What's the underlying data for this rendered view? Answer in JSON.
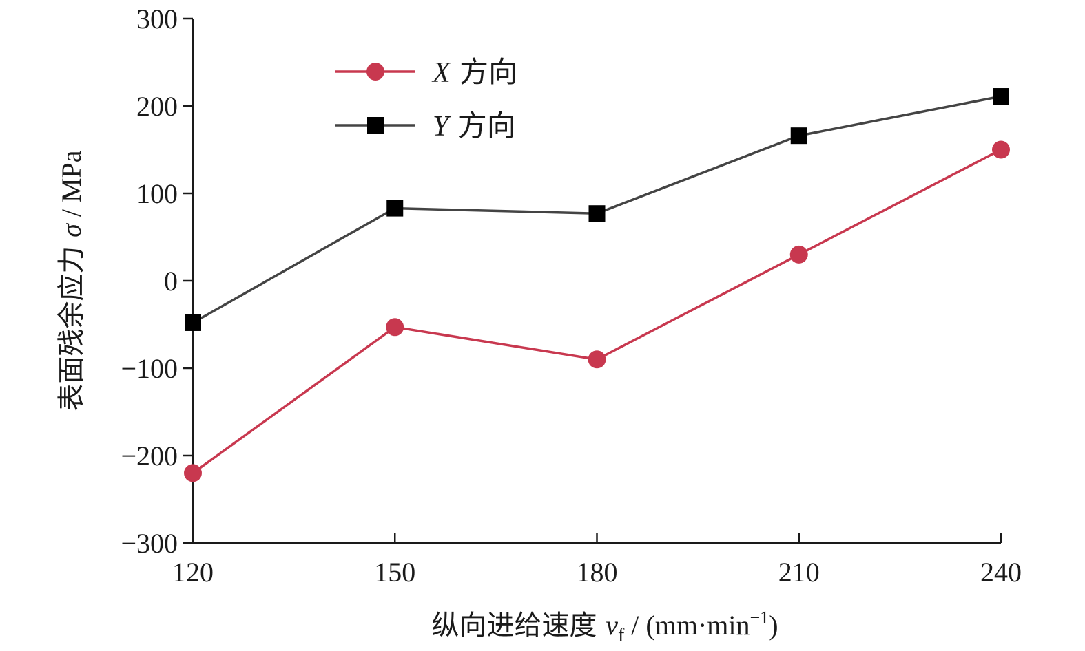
{
  "chart_data": {
    "type": "line",
    "x": [
      120,
      150,
      180,
      210,
      240
    ],
    "xlim": [
      120,
      240
    ],
    "ylim": [
      -300,
      300
    ],
    "x_ticks": [
      "120",
      "150",
      "180",
      "210",
      "240"
    ],
    "y_ticks": [
      "300",
      "200",
      "100",
      "0",
      "−100",
      "−200",
      "−300"
    ],
    "xlabel": {
      "main": "纵向进给速度 ",
      "symbol": "v",
      "subscript": "f",
      "unit": " / (mm·min",
      "unit_exp": "−1",
      "unit_end": ")"
    },
    "ylabel": {
      "main": "表面残余应力 ",
      "symbol": "σ",
      "unit": " / MPa"
    },
    "legend_position": "top-left",
    "grid": false,
    "series": [
      {
        "name_symbol": "X",
        "name_text": " 方向",
        "marker": "circle",
        "color": "#c8384f",
        "values": [
          -220,
          -53,
          -90,
          30,
          150
        ]
      },
      {
        "name_symbol": "Y",
        "name_text": " 方向",
        "marker": "square",
        "color": "#000000",
        "line_color": "#444444",
        "values": [
          -48,
          83,
          77,
          166,
          211
        ]
      }
    ]
  }
}
